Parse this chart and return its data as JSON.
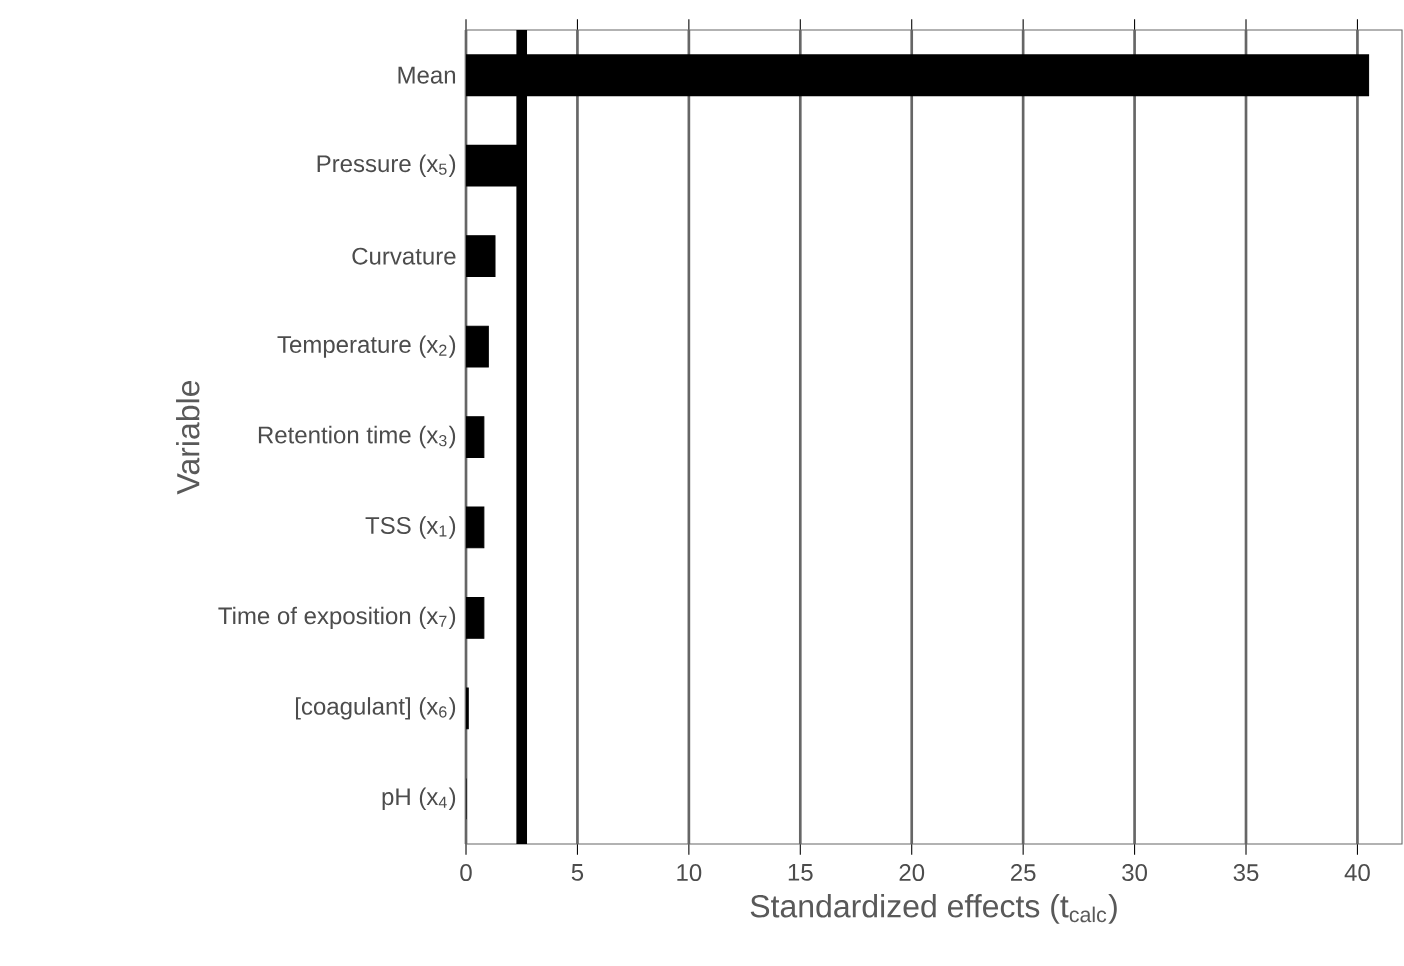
{
  "chart_data": {
    "type": "bar",
    "orientation": "horizontal",
    "categories": [
      "Mean",
      "Pressure (x$_{5}$)",
      "Curvature",
      "Temperature (x$_{2}$)",
      "Retention time (x$_{3}$)",
      "TSS (x$_{1}$)",
      "Time of exposition (x$_{7}$)",
      "[coagulant] (x$_{6}$)",
      "pH (x$_{4}$)"
    ],
    "values": [
      40.5,
      2.5,
      1.3,
      1.0,
      0.8,
      0.8,
      0.8,
      0.1,
      0
    ],
    "color": "#000000",
    "xlabel": "Standardized effects (t$_{calc}$)",
    "ylabel": "Variable",
    "xlim": [
      0,
      42
    ],
    "xticks": [
      0,
      5,
      10,
      15,
      20,
      25,
      30,
      35,
      40
    ],
    "grid": "x",
    "ref_lines": [
      {
        "axis": "x",
        "value": 2.5,
        "color": "#000000"
      }
    ]
  }
}
